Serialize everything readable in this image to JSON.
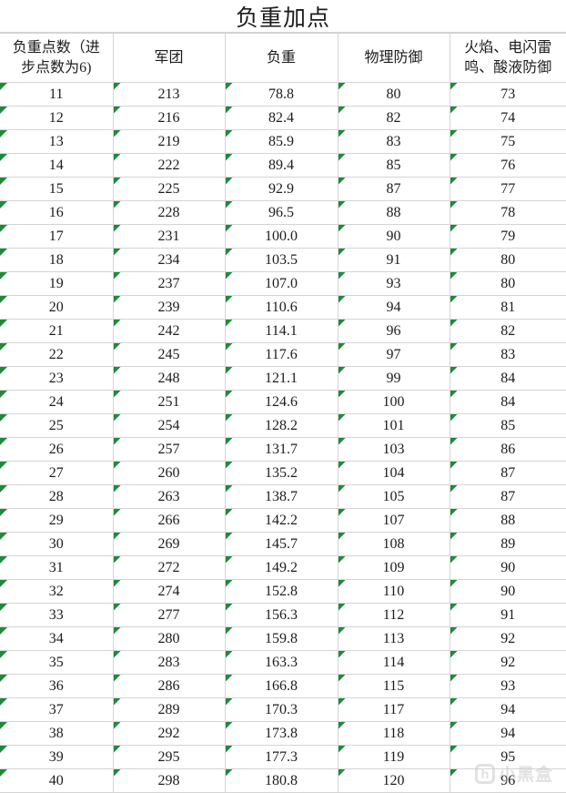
{
  "title": "负重加点",
  "table": {
    "headers": [
      "负重点数（进步点数为6)",
      "军团",
      "负重",
      "物理防御",
      "火焰、电闪雷鸣、酸液防御"
    ],
    "rows": [
      [
        "11",
        "213",
        "78.8",
        "80",
        "73"
      ],
      [
        "12",
        "216",
        "82.4",
        "82",
        "74"
      ],
      [
        "13",
        "219",
        "85.9",
        "83",
        "75"
      ],
      [
        "14",
        "222",
        "89.4",
        "85",
        "76"
      ],
      [
        "15",
        "225",
        "92.9",
        "87",
        "77"
      ],
      [
        "16",
        "228",
        "96.5",
        "88",
        "78"
      ],
      [
        "17",
        "231",
        "100.0",
        "90",
        "79"
      ],
      [
        "18",
        "234",
        "103.5",
        "91",
        "80"
      ],
      [
        "19",
        "237",
        "107.0",
        "93",
        "80"
      ],
      [
        "20",
        "239",
        "110.6",
        "94",
        "81"
      ],
      [
        "21",
        "242",
        "114.1",
        "96",
        "82"
      ],
      [
        "22",
        "245",
        "117.6",
        "97",
        "83"
      ],
      [
        "23",
        "248",
        "121.1",
        "99",
        "84"
      ],
      [
        "24",
        "251",
        "124.6",
        "100",
        "84"
      ],
      [
        "25",
        "254",
        "128.2",
        "101",
        "85"
      ],
      [
        "26",
        "257",
        "131.7",
        "103",
        "86"
      ],
      [
        "27",
        "260",
        "135.2",
        "104",
        "87"
      ],
      [
        "28",
        "263",
        "138.7",
        "105",
        "87"
      ],
      [
        "29",
        "266",
        "142.2",
        "107",
        "88"
      ],
      [
        "30",
        "269",
        "145.7",
        "108",
        "89"
      ],
      [
        "31",
        "272",
        "149.2",
        "109",
        "90"
      ],
      [
        "32",
        "274",
        "152.8",
        "110",
        "90"
      ],
      [
        "33",
        "277",
        "156.3",
        "112",
        "91"
      ],
      [
        "34",
        "280",
        "159.8",
        "113",
        "92"
      ],
      [
        "35",
        "283",
        "163.3",
        "114",
        "92"
      ],
      [
        "36",
        "286",
        "166.8",
        "115",
        "93"
      ],
      [
        "37",
        "289",
        "170.3",
        "117",
        "94"
      ],
      [
        "38",
        "292",
        "173.8",
        "118",
        "94"
      ],
      [
        "39",
        "295",
        "177.3",
        "119",
        "95"
      ],
      [
        "40",
        "298",
        "180.8",
        "120",
        "96"
      ]
    ]
  },
  "watermark": {
    "logo_glyph": "h",
    "text": "小黑盒"
  },
  "icons": {
    "cell_flag": "error-flag-triangle-icon"
  },
  "colors": {
    "grid": "#d4d4d4",
    "flag_green": "#1f8a3c",
    "text": "#1c1c1c",
    "background": "#ffffff",
    "watermark_gray": "#c9c9c9"
  }
}
